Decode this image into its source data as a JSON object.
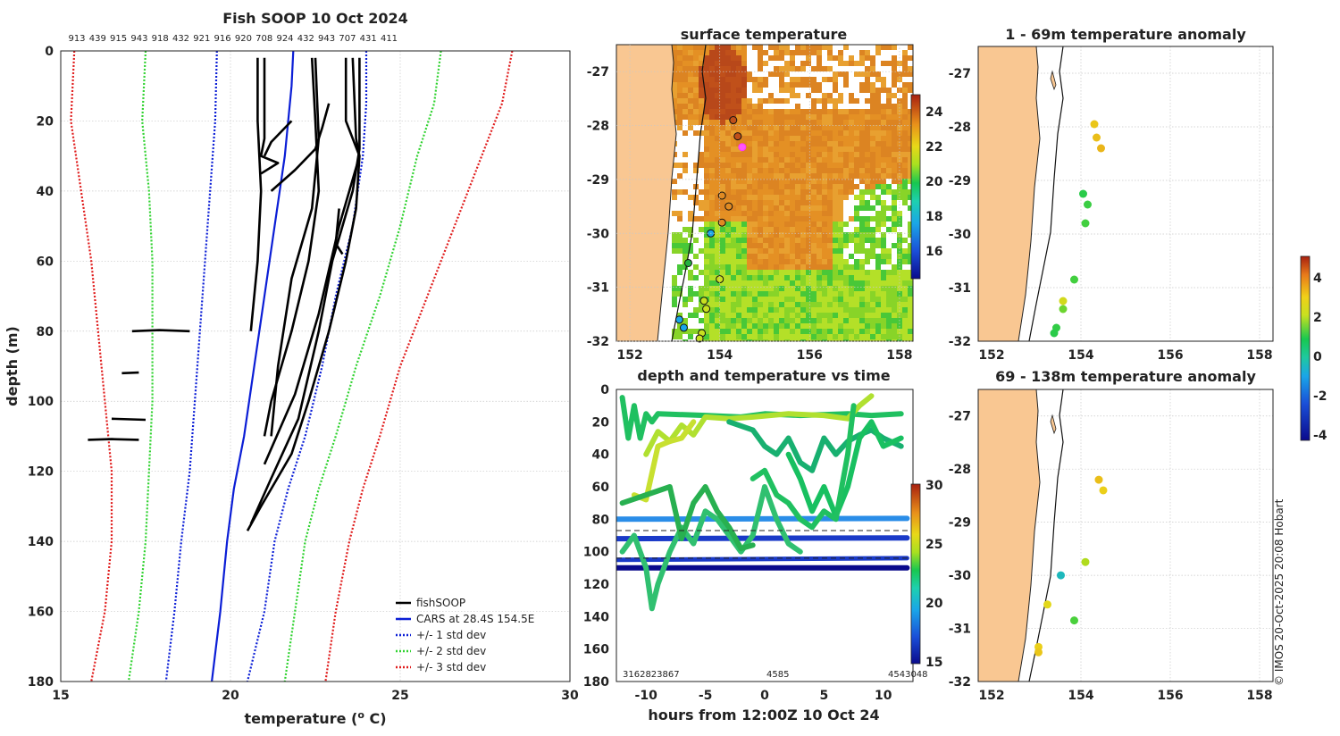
{
  "chart_data": [
    {
      "type": "line",
      "title": "Fish SOOP 10 Oct 2024",
      "top_labels": [
        "913",
        "439",
        "915",
        "943",
        "918",
        "432",
        "921",
        "916",
        "920",
        "708",
        "924",
        "432",
        "943",
        "707",
        "431",
        "411"
      ],
      "xlabel": "temperature (",
      "xlabel_sup": "o",
      "xlabel_end": " C)",
      "ylabel": "depth (m)",
      "xlim": [
        15,
        30
      ],
      "ylim": [
        0,
        180
      ],
      "xticks": [
        "15",
        "20",
        "25",
        "30"
      ],
      "yticks": [
        "0",
        "20",
        "40",
        "60",
        "80",
        "100",
        "120",
        "140",
        "160",
        "180"
      ],
      "legend": [
        "fishSOOP",
        "CARS at 28.4S 154.5E",
        "+/- 1 std dev",
        "+/- 2 std dev",
        "+/- 3 std dev"
      ],
      "colors": {
        "fish": "#000000",
        "cars": "#0b1ed6",
        "std1": "#0b1ed6",
        "std2": "#2fd22f",
        "std3": "#e01b1b"
      },
      "series": {
        "cars": [
          [
            21.85,
            0
          ],
          [
            21.8,
            10
          ],
          [
            21.6,
            30
          ],
          [
            21.3,
            50
          ],
          [
            21.0,
            70
          ],
          [
            20.7,
            90
          ],
          [
            20.4,
            110
          ],
          [
            20.1,
            125
          ],
          [
            19.9,
            140
          ],
          [
            19.7,
            160
          ],
          [
            19.45,
            180
          ]
        ],
        "std1_l": [
          [
            19.6,
            0
          ],
          [
            19.55,
            20
          ],
          [
            19.4,
            40
          ],
          [
            19.25,
            60
          ],
          [
            19.1,
            80
          ],
          [
            18.95,
            100
          ],
          [
            18.8,
            120
          ],
          [
            18.55,
            140
          ],
          [
            18.35,
            160
          ],
          [
            18.1,
            180
          ]
        ],
        "std1_r": [
          [
            24.0,
            0
          ],
          [
            24.0,
            15
          ],
          [
            23.9,
            30
          ],
          [
            23.6,
            50
          ],
          [
            23.1,
            70
          ],
          [
            22.7,
            90
          ],
          [
            22.2,
            110
          ],
          [
            21.7,
            125
          ],
          [
            21.3,
            140
          ],
          [
            21.0,
            160
          ],
          [
            20.5,
            180
          ]
        ],
        "std2_l": [
          [
            17.5,
            0
          ],
          [
            17.4,
            20
          ],
          [
            17.6,
            40
          ],
          [
            17.7,
            60
          ],
          [
            17.7,
            80
          ],
          [
            17.7,
            100
          ],
          [
            17.6,
            120
          ],
          [
            17.5,
            140
          ],
          [
            17.3,
            160
          ],
          [
            17.0,
            180
          ]
        ],
        "std2_r": [
          [
            26.2,
            0
          ],
          [
            26.0,
            15
          ],
          [
            25.5,
            30
          ],
          [
            25.0,
            50
          ],
          [
            24.4,
            70
          ],
          [
            23.7,
            90
          ],
          [
            23.1,
            110
          ],
          [
            22.6,
            125
          ],
          [
            22.2,
            140
          ],
          [
            21.9,
            160
          ],
          [
            21.6,
            180
          ]
        ],
        "std3_l": [
          [
            15.4,
            0
          ],
          [
            15.3,
            20
          ],
          [
            15.6,
            40
          ],
          [
            15.9,
            60
          ],
          [
            16.1,
            80
          ],
          [
            16.3,
            100
          ],
          [
            16.5,
            120
          ],
          [
            16.5,
            140
          ],
          [
            16.3,
            160
          ],
          [
            15.9,
            180
          ]
        ],
        "std3_r": [
          [
            28.3,
            0
          ],
          [
            28.0,
            15
          ],
          [
            27.4,
            30
          ],
          [
            26.6,
            50
          ],
          [
            25.8,
            70
          ],
          [
            25.0,
            90
          ],
          [
            24.4,
            110
          ],
          [
            23.9,
            125
          ],
          [
            23.5,
            140
          ],
          [
            23.1,
            160
          ],
          [
            22.8,
            180
          ]
        ],
        "fish": [
          [
            [
              20.8,
              2
            ],
            [
              20.8,
              20
            ],
            [
              20.9,
              40
            ],
            [
              20.8,
              60
            ],
            [
              20.6,
              80
            ]
          ],
          [
            [
              21.0,
              2
            ],
            [
              21.0,
              25
            ],
            [
              20.9,
              30
            ],
            [
              21.4,
              32
            ],
            [
              20.9,
              35
            ]
          ],
          [
            [
              22.4,
              2
            ],
            [
              22.5,
              20
            ],
            [
              22.6,
              40
            ],
            [
              22.3,
              60
            ],
            [
              21.8,
              80
            ],
            [
              21.2,
              100
            ],
            [
              21.0,
              110
            ]
          ],
          [
            [
              22.5,
              2
            ],
            [
              22.6,
              25
            ],
            [
              22.4,
              45
            ],
            [
              21.8,
              65
            ],
            [
              21.4,
              90
            ],
            [
              21.2,
              110
            ]
          ],
          [
            [
              23.6,
              2
            ],
            [
              23.7,
              25
            ],
            [
              23.8,
              30
            ],
            [
              23.7,
              45
            ],
            [
              23.4,
              60
            ],
            [
              22.9,
              80
            ],
            [
              22.3,
              100
            ],
            [
              21.8,
              115
            ],
            [
              20.9,
              130
            ],
            [
              20.5,
              137
            ]
          ],
          [
            [
              23.8,
              2
            ],
            [
              23.8,
              28
            ],
            [
              23.6,
              40
            ],
            [
              23.0,
              60
            ],
            [
              22.6,
              80
            ],
            [
              22.0,
              105
            ],
            [
              21.2,
              122
            ],
            [
              20.6,
              135
            ]
          ],
          [
            [
              23.4,
              2
            ],
            [
              23.4,
              20
            ],
            [
              23.8,
              30
            ],
            [
              23.2,
              50
            ],
            [
              22.6,
              75
            ],
            [
              21.9,
              98
            ],
            [
              21.0,
              118
            ]
          ],
          [
            [
              21.8,
              20
            ],
            [
              21.2,
              26
            ],
            [
              21.0,
              30
            ]
          ],
          [
            [
              22.9,
              15
            ],
            [
              22.7,
              22
            ],
            [
              22.5,
              28
            ],
            [
              21.9,
              34
            ],
            [
              21.2,
              40
            ]
          ],
          [
            [
              23.2,
              45
            ],
            [
              23.1,
              55
            ],
            [
              23.3,
              58
            ]
          ],
          [
            [
              17.1,
              80
            ],
            [
              17.9,
              79.7
            ],
            [
              18.8,
              80
            ]
          ],
          [
            [
              16.8,
              92
            ],
            [
              17.3,
              91.8
            ]
          ],
          [
            [
              16.5,
              105
            ],
            [
              17.5,
              105.3
            ]
          ],
          [
            [
              15.8,
              111
            ],
            [
              16.5,
              110.8
            ],
            [
              17.3,
              111
            ]
          ]
        ]
      }
    },
    {
      "type": "heatmap",
      "title": "surface temperature",
      "xticks": [
        "152",
        "154",
        "156",
        "158"
      ],
      "yticks": [
        "-27",
        "-28",
        "-29",
        "-30",
        "-31",
        "-32"
      ],
      "colorbar_ticks": [
        "24",
        "22",
        "20",
        "18",
        "16"
      ],
      "stations": [
        [
          154.3,
          -27.9
        ],
        [
          154.4,
          -28.2
        ],
        [
          154.5,
          -28.4
        ],
        [
          154.05,
          -29.3
        ],
        [
          154.2,
          -29.5
        ],
        [
          154.05,
          -29.8
        ],
        [
          153.8,
          -30.0
        ],
        [
          153.3,
          -30.55
        ],
        [
          154.0,
          -30.85
        ],
        [
          153.65,
          -31.25
        ],
        [
          153.7,
          -31.4
        ],
        [
          153.1,
          -31.6
        ],
        [
          153.2,
          -31.75
        ],
        [
          153.6,
          -31.85
        ],
        [
          153.55,
          -31.95
        ]
      ]
    },
    {
      "type": "scatter",
      "title": "depth and temperature vs time",
      "xlabel": "hours from 12:00Z 10 Oct 24",
      "xticks": [
        "-10",
        "-5",
        "0",
        "5",
        "10"
      ],
      "yticks": [
        "0",
        "20",
        "40",
        "60",
        "80",
        "100",
        "120",
        "140",
        "160",
        "180"
      ],
      "colorbar_ticks": [
        "30",
        "25",
        "20",
        "15"
      ],
      "bottom_labels": [
        "3162823867",
        "4585",
        "4543048"
      ],
      "hlines": [
        87,
        104
      ]
    },
    {
      "type": "scatter",
      "title": "1 - 69m temperature anomaly",
      "xticks": [
        "152",
        "154",
        "156",
        "158"
      ],
      "yticks": [
        "-27",
        "-28",
        "-29",
        "-30",
        "-31",
        "-32"
      ],
      "points": [
        [
          154.3,
          -27.95,
          2.7
        ],
        [
          154.35,
          -28.2,
          2.8
        ],
        [
          154.45,
          -28.4,
          2.9
        ],
        [
          154.05,
          -29.25,
          0.2
        ],
        [
          154.15,
          -29.45,
          0.4
        ],
        [
          154.1,
          -29.8,
          0.5
        ],
        [
          153.85,
          -30.85,
          0.5
        ],
        [
          153.6,
          -31.25,
          2.2
        ],
        [
          153.6,
          -31.4,
          1.0
        ],
        [
          153.45,
          -31.75,
          0.3
        ],
        [
          153.4,
          -31.85,
          0.2
        ]
      ]
    },
    {
      "type": "scatter",
      "title": "69 - 138m temperature anomaly",
      "xticks": [
        "152",
        "154",
        "156",
        "158"
      ],
      "yticks": [
        "-27",
        "-28",
        "-29",
        "-30",
        "-31",
        "-32"
      ],
      "points": [
        [
          154.4,
          -28.2,
          2.8
        ],
        [
          154.5,
          -28.4,
          2.6
        ],
        [
          154.1,
          -29.75,
          1.8
        ],
        [
          153.55,
          -30.0,
          -1.2
        ],
        [
          153.85,
          -30.85,
          0.6
        ],
        [
          153.25,
          -30.55,
          2.4
        ],
        [
          153.05,
          -31.35,
          2.6
        ],
        [
          153.05,
          -31.45,
          2.7
        ]
      ]
    }
  ],
  "anomaly_colorbar_ticks": [
    "4",
    "2",
    "0",
    "-2",
    "-4"
  ],
  "copyright": "© IMOS 20-Oct-2025 20:08 Hobart"
}
